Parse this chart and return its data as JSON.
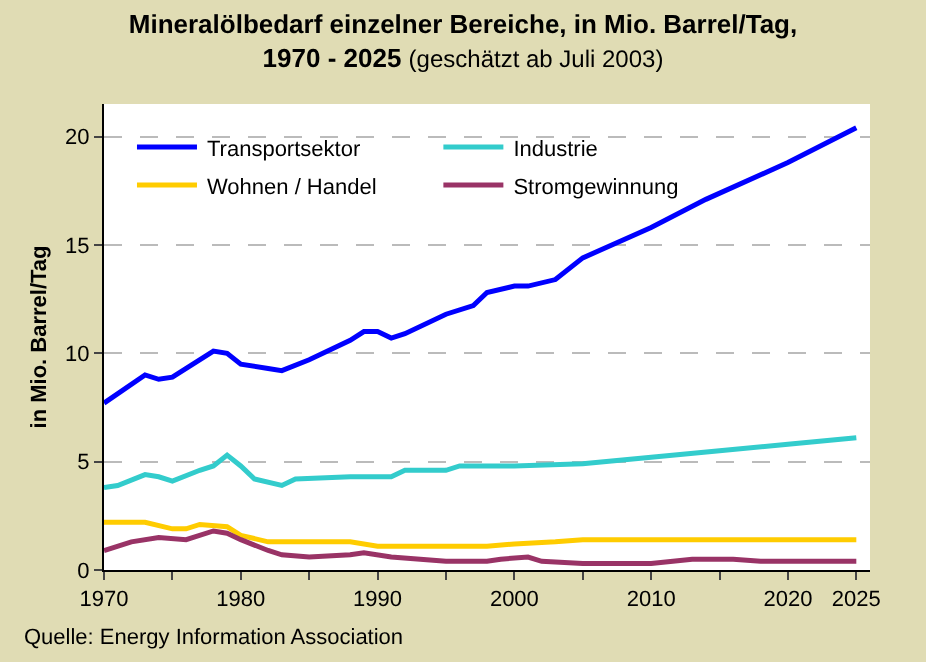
{
  "chart_data": {
    "type": "line",
    "title": "Mineralölbedarf einzelner Bereiche, in Mio. Barrel/Tag,\n1970 - 2025",
    "subtitle": "(geschätzt ab Juli 2003)",
    "ylabel": "in Mio. Barrel/Tag",
    "annotations": [
      "Quelle: Energy Information Association"
    ],
    "series": [
      {
        "name": "Transportsektor",
        "color": "#0000ff",
        "x": [
          1970,
          1973,
          1974,
          1975,
          1978,
          1979,
          1980,
          1982,
          1983,
          1985,
          1988,
          1989,
          1990,
          1991,
          1992,
          1995,
          1997,
          1998,
          2000,
          2001,
          2003,
          2005,
          2010,
          2014,
          2020,
          2025
        ],
        "values": [
          7.7,
          9.0,
          8.8,
          8.9,
          10.1,
          10.0,
          9.5,
          9.3,
          9.2,
          9.7,
          10.6,
          11.0,
          11.0,
          10.7,
          10.9,
          11.8,
          12.2,
          12.8,
          13.1,
          13.1,
          13.4,
          14.4,
          15.8,
          17.1,
          18.8,
          20.4
        ]
      },
      {
        "name": "Industrie",
        "color": "#33cccc",
        "x": [
          1970,
          1971,
          1973,
          1974,
          1975,
          1977,
          1978,
          1979,
          1980,
          1981,
          1983,
          1984,
          1988,
          1990,
          1991,
          1992,
          1995,
          1996,
          2000,
          2005,
          2010,
          2015,
          2020,
          2025
        ],
        "values": [
          3.8,
          3.9,
          4.4,
          4.3,
          4.1,
          4.6,
          4.8,
          5.3,
          4.8,
          4.2,
          3.9,
          4.2,
          4.3,
          4.3,
          4.3,
          4.6,
          4.6,
          4.8,
          4.8,
          4.9,
          5.2,
          5.5,
          5.8,
          6.1
        ]
      },
      {
        "name": "Wohnen / Handel",
        "color": "#ffcc00",
        "x": [
          1970,
          1973,
          1975,
          1976,
          1977,
          1979,
          1980,
          1982,
          1988,
          1990,
          1995,
          1998,
          2000,
          2003,
          2005,
          2025
        ],
        "values": [
          2.2,
          2.2,
          1.9,
          1.9,
          2.1,
          2.0,
          1.6,
          1.3,
          1.3,
          1.1,
          1.1,
          1.1,
          1.2,
          1.3,
          1.4,
          1.4
        ]
      },
      {
        "name": "Stromgewinnung",
        "color": "#993366",
        "x": [
          1970,
          1972,
          1974,
          1976,
          1978,
          1979,
          1980,
          1982,
          1983,
          1985,
          1988,
          1989,
          1991,
          1995,
          1998,
          1999,
          2001,
          2002,
          2005,
          2010,
          2013,
          2016,
          2018,
          2025
        ],
        "values": [
          0.9,
          1.3,
          1.5,
          1.4,
          1.8,
          1.7,
          1.4,
          0.9,
          0.7,
          0.6,
          0.7,
          0.8,
          0.6,
          0.4,
          0.4,
          0.5,
          0.6,
          0.4,
          0.3,
          0.3,
          0.5,
          0.5,
          0.4,
          0.4
        ]
      }
    ],
    "xlim": [
      1970,
      2026
    ],
    "xticks": [
      1970,
      {
        "value": 1975,
        "label": null
      },
      1980,
      {
        "value": 1985,
        "label": null
      },
      1990,
      {
        "value": 1995,
        "label": null
      },
      2000,
      {
        "value": 2005,
        "label": null
      },
      2010,
      {
        "value": 2015,
        "label": null
      },
      2020,
      2025
    ],
    "ylim": [
      0,
      21.5
    ],
    "yticks": [
      0,
      5,
      10,
      15,
      20
    ],
    "grid": "y",
    "legend": "top left",
    "marker": "none",
    "line_style": "solid"
  }
}
